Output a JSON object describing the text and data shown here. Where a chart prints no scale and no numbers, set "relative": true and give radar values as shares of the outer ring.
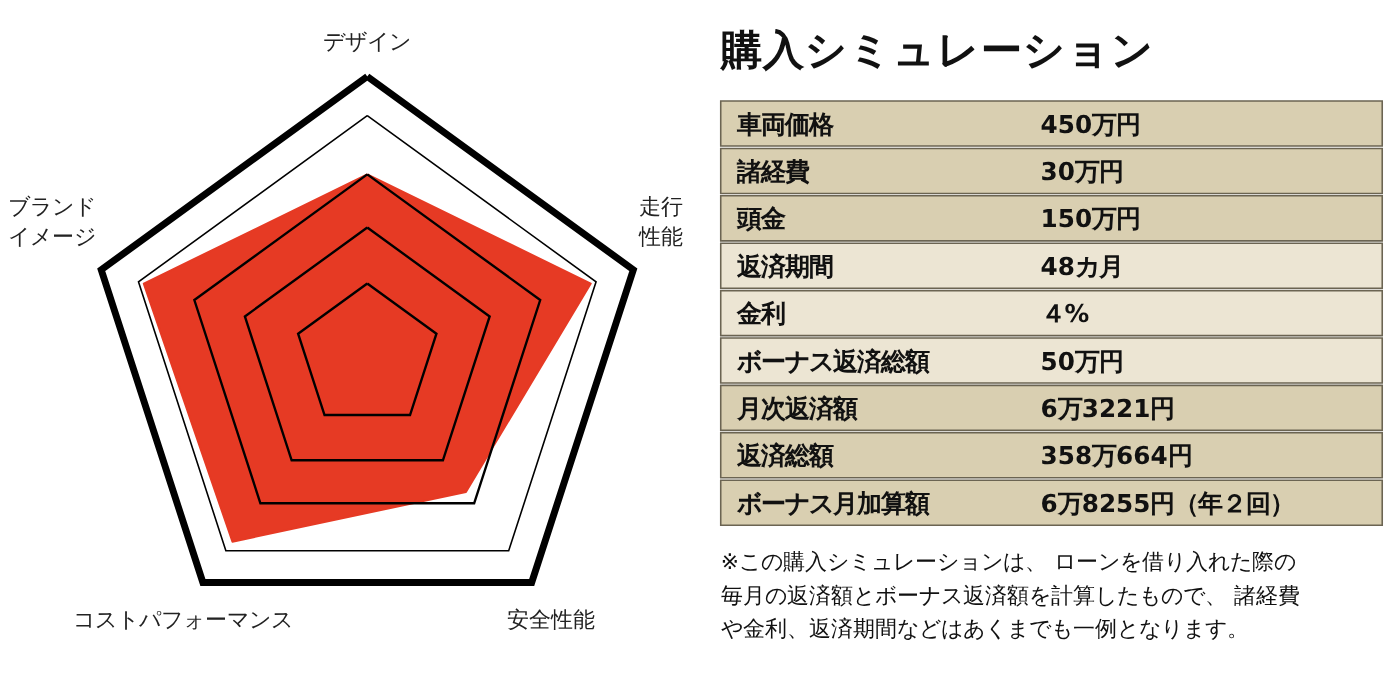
{
  "chart_data": [
    {
      "type": "radar",
      "relative": true,
      "categories": [
        "デザイン",
        "走行性能",
        "安全性能",
        "コストパフォーマンス",
        "ブランドイメージ"
      ],
      "series": [
        {
          "color": "#e63a24",
          "values": [
            0.65,
            0.84,
            0.6,
            0.82,
            0.84
          ]
        }
      ]
    },
    {
      "type": "other",
      "title": "購入シミュレーション",
      "categories": [
        "車両価格",
        "諸経費",
        "頭金",
        "返済期間",
        "金利",
        "ボーナス返済総額",
        "月次返済額",
        "返済総額",
        "ボーナス月加算額"
      ],
      "value_labels": [
        "450万円",
        "30万円",
        "150万円",
        "48カ月",
        "４%",
        "50万円",
        "6万3221円",
        "358万664円",
        "6万8255円（年２回）"
      ],
      "annotations": [
        "※この購入シミュレーションは、 ローンを借り入れた際の毎月の返済額とボーナス返済額を計算したもので、 諸経費や金利、返済期間などはあくまでも一例となります。"
      ]
    }
  ]
}
